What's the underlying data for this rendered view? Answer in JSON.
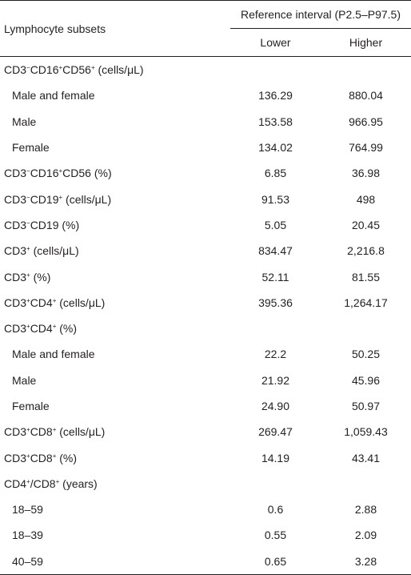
{
  "table": {
    "header": {
      "stub": "Lymphocyte subsets",
      "group": "Reference interval (P2.5–P97.5)",
      "lower": "Lower",
      "higher": "Higher"
    },
    "rows": [
      {
        "label_parts": [
          [
            "CD3",
            ""
          ],
          [
            "−",
            "sup"
          ],
          [
            "CD16",
            ""
          ],
          [
            "+",
            "sup"
          ],
          [
            "CD56",
            ""
          ],
          [
            "+",
            "sup"
          ],
          [
            " (cells/μL)",
            ""
          ]
        ],
        "indent": false,
        "lower": "",
        "higher": ""
      },
      {
        "label": "Male and female",
        "indent": true,
        "lower": "136.29",
        "higher": "880.04"
      },
      {
        "label": "Male",
        "indent": true,
        "lower": "153.58",
        "higher": "966.95"
      },
      {
        "label": "Female",
        "indent": true,
        "lower": "134.02",
        "higher": "764.99"
      },
      {
        "label_parts": [
          [
            "CD3",
            ""
          ],
          [
            "−",
            "sup"
          ],
          [
            "CD16",
            ""
          ],
          [
            "+",
            "sup"
          ],
          [
            "CD56 (%)",
            ""
          ]
        ],
        "indent": false,
        "lower": "6.85",
        "higher": "36.98"
      },
      {
        "label_parts": [
          [
            "CD3",
            ""
          ],
          [
            "−",
            "sup"
          ],
          [
            "CD19",
            ""
          ],
          [
            "+",
            "sup"
          ],
          [
            " (cells/μL)",
            ""
          ]
        ],
        "indent": false,
        "lower": "91.53",
        "higher": "498"
      },
      {
        "label_parts": [
          [
            "CD3",
            ""
          ],
          [
            "−",
            "sup"
          ],
          [
            "CD19 (%)",
            ""
          ]
        ],
        "indent": false,
        "lower": "5.05",
        "higher": "20.45"
      },
      {
        "label_parts": [
          [
            "CD3",
            ""
          ],
          [
            "+",
            "sup"
          ],
          [
            " (cells/μL)",
            ""
          ]
        ],
        "indent": false,
        "lower": "834.47",
        "higher": "2,216.8"
      },
      {
        "label_parts": [
          [
            "CD3",
            ""
          ],
          [
            "+",
            "sup"
          ],
          [
            " (%)",
            ""
          ]
        ],
        "indent": false,
        "lower": "52.11",
        "higher": "81.55"
      },
      {
        "label_parts": [
          [
            "CD3",
            ""
          ],
          [
            "+",
            "sup"
          ],
          [
            "CD4",
            ""
          ],
          [
            "+",
            "sup"
          ],
          [
            " (cells/μL)",
            ""
          ]
        ],
        "indent": false,
        "lower": "395.36",
        "higher": "1,264.17"
      },
      {
        "label_parts": [
          [
            "CD3",
            ""
          ],
          [
            "+",
            "sup"
          ],
          [
            "CD4",
            ""
          ],
          [
            "+",
            "sup"
          ],
          [
            " (%)",
            ""
          ]
        ],
        "indent": false,
        "lower": "",
        "higher": ""
      },
      {
        "label": "Male and female",
        "indent": true,
        "lower": "22.2",
        "higher": "50.25"
      },
      {
        "label": "Male",
        "indent": true,
        "lower": "21.92",
        "higher": "45.96"
      },
      {
        "label": "Female",
        "indent": true,
        "lower": "24.90",
        "higher": "50.97"
      },
      {
        "label_parts": [
          [
            "CD3",
            ""
          ],
          [
            "+",
            "sup"
          ],
          [
            "CD8",
            ""
          ],
          [
            "+",
            "sup"
          ],
          [
            " (cells/μL)",
            ""
          ]
        ],
        "indent": false,
        "lower": "269.47",
        "higher": "1,059.43"
      },
      {
        "label_parts": [
          [
            "CD3",
            ""
          ],
          [
            "+",
            "sup"
          ],
          [
            "CD8",
            ""
          ],
          [
            "+",
            "sup"
          ],
          [
            " (%)",
            ""
          ]
        ],
        "indent": false,
        "lower": "14.19",
        "higher": "43.41"
      },
      {
        "label_parts": [
          [
            "CD4",
            ""
          ],
          [
            "+",
            "sup"
          ],
          [
            "/CD8",
            ""
          ],
          [
            "+",
            "sup"
          ],
          [
            " (years)",
            ""
          ]
        ],
        "indent": false,
        "lower": "",
        "higher": ""
      },
      {
        "label": "18–59",
        "indent": true,
        "lower": "0.6",
        "higher": "2.88"
      },
      {
        "label": "18–39",
        "indent": true,
        "lower": "0.55",
        "higher": "2.09"
      },
      {
        "label": "40–59",
        "indent": true,
        "lower": "0.65",
        "higher": "3.28"
      }
    ]
  }
}
